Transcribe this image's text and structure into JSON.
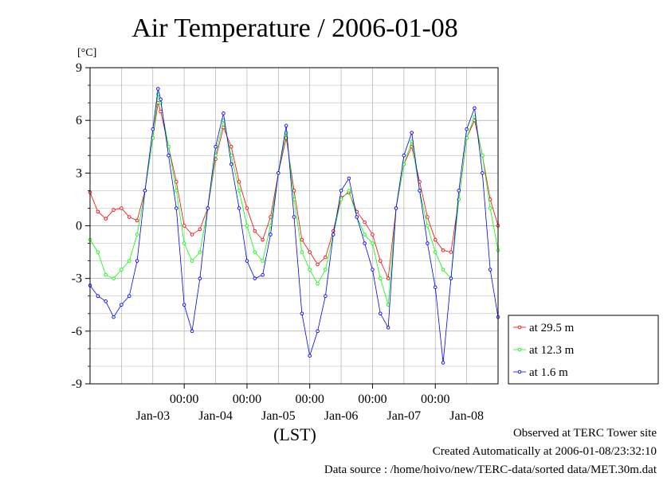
{
  "chart_data": {
    "type": "line",
    "title": "Air Temperature / 2006-01-08",
    "yunit": "[°C]",
    "xlabel": "(LST)",
    "ylim": [
      -9,
      9
    ],
    "yticks": [
      -9,
      -6,
      -3,
      0,
      3,
      6,
      9
    ],
    "grid": true,
    "legend_position": "bottom-right",
    "x_range_days": [
      "2006-01-02 12:00",
      "2006-01-08 24:00"
    ],
    "x_time_ticks": [
      {
        "time": "2006-01-04 00:00",
        "label": "00:00"
      },
      {
        "time": "2006-01-05 00:00",
        "label": "00:00"
      },
      {
        "time": "2006-01-06 00:00",
        "label": "00:00"
      },
      {
        "time": "2006-01-07 00:00",
        "label": "00:00"
      },
      {
        "time": "2006-01-08 00:00",
        "label": "00:00"
      }
    ],
    "x_date_labels": [
      {
        "time": "2006-01-03 12:00",
        "label": "Jan-03"
      },
      {
        "time": "2006-01-04 12:00",
        "label": "Jan-04"
      },
      {
        "time": "2006-01-05 12:00",
        "label": "Jan-05"
      },
      {
        "time": "2006-01-06 12:00",
        "label": "Jan-06"
      },
      {
        "time": "2006-01-07 12:00",
        "label": "Jan-07"
      },
      {
        "time": "2006-01-08 12:00",
        "label": "Jan-08"
      }
    ],
    "series": [
      {
        "name": "at 29.5 m",
        "color": "#ff0000",
        "points": [
          [
            "2006-01-02 12:00",
            1.9
          ],
          [
            "2006-01-02 15:00",
            0.8
          ],
          [
            "2006-01-02 18:00",
            0.4
          ],
          [
            "2006-01-02 21:00",
            0.9
          ],
          [
            "2006-01-03 00:00",
            1.0
          ],
          [
            "2006-01-03 03:00",
            0.5
          ],
          [
            "2006-01-03 06:00",
            0.3
          ],
          [
            "2006-01-03 09:00",
            2.0
          ],
          [
            "2006-01-03 12:00",
            5.0
          ],
          [
            "2006-01-03 14:00",
            7.0
          ],
          [
            "2006-01-03 15:00",
            6.5
          ],
          [
            "2006-01-03 18:00",
            4.5
          ],
          [
            "2006-01-03 21:00",
            2.5
          ],
          [
            "2006-01-04 00:00",
            0.0
          ],
          [
            "2006-01-04 03:00",
            -0.5
          ],
          [
            "2006-01-04 06:00",
            -0.2
          ],
          [
            "2006-01-04 09:00",
            1.0
          ],
          [
            "2006-01-04 12:00",
            3.8
          ],
          [
            "2006-01-04 15:00",
            5.6
          ],
          [
            "2006-01-04 18:00",
            4.5
          ],
          [
            "2006-01-04 21:00",
            2.5
          ],
          [
            "2006-01-05 00:00",
            1.0
          ],
          [
            "2006-01-05 03:00",
            -0.3
          ],
          [
            "2006-01-05 06:00",
            -0.8
          ],
          [
            "2006-01-05 09:00",
            0.5
          ],
          [
            "2006-01-05 12:00",
            3.0
          ],
          [
            "2006-01-05 15:00",
            5.0
          ],
          [
            "2006-01-05 18:00",
            2.0
          ],
          [
            "2006-01-05 21:00",
            -0.8
          ],
          [
            "2006-01-06 00:00",
            -1.5
          ],
          [
            "2006-01-06 03:00",
            -2.2
          ],
          [
            "2006-01-06 06:00",
            -1.8
          ],
          [
            "2006-01-06 09:00",
            -0.3
          ],
          [
            "2006-01-06 12:00",
            1.6
          ],
          [
            "2006-01-06 15:00",
            1.9
          ],
          [
            "2006-01-06 18:00",
            0.8
          ],
          [
            "2006-01-06 21:00",
            0.2
          ],
          [
            "2006-01-07 00:00",
            -0.5
          ],
          [
            "2006-01-07 03:00",
            -2.0
          ],
          [
            "2006-01-07 06:00",
            -3.0
          ],
          [
            "2006-01-07 09:00",
            1.0
          ],
          [
            "2006-01-07 12:00",
            3.5
          ],
          [
            "2006-01-07 15:00",
            4.5
          ],
          [
            "2006-01-07 18:00",
            2.5
          ],
          [
            "2006-01-07 21:00",
            0.5
          ],
          [
            "2006-01-08 00:00",
            -0.8
          ],
          [
            "2006-01-08 03:00",
            -1.4
          ],
          [
            "2006-01-08 06:00",
            -1.5
          ],
          [
            "2006-01-08 09:00",
            1.5
          ],
          [
            "2006-01-08 12:00",
            5.0
          ],
          [
            "2006-01-08 15:00",
            6.0
          ],
          [
            "2006-01-08 18:00",
            4.0
          ],
          [
            "2006-01-08 21:00",
            1.5
          ],
          [
            "2006-01-08 24:00",
            0.0
          ]
        ]
      },
      {
        "name": "at 12.3 m",
        "color": "#00ff00",
        "points": [
          [
            "2006-01-02 12:00",
            -0.8
          ],
          [
            "2006-01-02 15:00",
            -1.5
          ],
          [
            "2006-01-02 18:00",
            -2.8
          ],
          [
            "2006-01-02 21:00",
            -3.0
          ],
          [
            "2006-01-03 00:00",
            -2.5
          ],
          [
            "2006-01-03 03:00",
            -2.0
          ],
          [
            "2006-01-03 06:00",
            -0.5
          ],
          [
            "2006-01-03 09:00",
            2.0
          ],
          [
            "2006-01-03 12:00",
            5.0
          ],
          [
            "2006-01-03 14:00",
            7.5
          ],
          [
            "2006-01-03 15:00",
            7.0
          ],
          [
            "2006-01-03 18:00",
            4.5
          ],
          [
            "2006-01-03 21:00",
            2.0
          ],
          [
            "2006-01-04 00:00",
            -1.0
          ],
          [
            "2006-01-04 03:00",
            -2.0
          ],
          [
            "2006-01-04 06:00",
            -1.5
          ],
          [
            "2006-01-04 09:00",
            1.0
          ],
          [
            "2006-01-04 12:00",
            4.0
          ],
          [
            "2006-01-04 15:00",
            6.0
          ],
          [
            "2006-01-04 18:00",
            4.0
          ],
          [
            "2006-01-04 21:00",
            2.0
          ],
          [
            "2006-01-05 00:00",
            0.0
          ],
          [
            "2006-01-05 03:00",
            -1.5
          ],
          [
            "2006-01-05 06:00",
            -2.0
          ],
          [
            "2006-01-05 09:00",
            0.0
          ],
          [
            "2006-01-05 12:00",
            3.0
          ],
          [
            "2006-01-05 15:00",
            5.3
          ],
          [
            "2006-01-05 18:00",
            1.5
          ],
          [
            "2006-01-05 21:00",
            -1.5
          ],
          [
            "2006-01-06 00:00",
            -2.5
          ],
          [
            "2006-01-06 03:00",
            -3.3
          ],
          [
            "2006-01-06 06:00",
            -2.5
          ],
          [
            "2006-01-06 09:00",
            -0.5
          ],
          [
            "2006-01-06 12:00",
            1.5
          ],
          [
            "2006-01-06 15:00",
            2.0
          ],
          [
            "2006-01-06 18:00",
            0.5
          ],
          [
            "2006-01-06 21:00",
            -0.5
          ],
          [
            "2006-01-07 00:00",
            -1.0
          ],
          [
            "2006-01-07 03:00",
            -3.0
          ],
          [
            "2006-01-07 06:00",
            -4.5
          ],
          [
            "2006-01-07 09:00",
            1.0
          ],
          [
            "2006-01-07 12:00",
            3.5
          ],
          [
            "2006-01-07 15:00",
            4.8
          ],
          [
            "2006-01-07 18:00",
            2.0
          ],
          [
            "2006-01-07 21:00",
            0.0
          ],
          [
            "2006-01-08 00:00",
            -1.5
          ],
          [
            "2006-01-08 03:00",
            -2.5
          ],
          [
            "2006-01-08 06:00",
            -3.0
          ],
          [
            "2006-01-08 09:00",
            1.5
          ],
          [
            "2006-01-08 12:00",
            5.0
          ],
          [
            "2006-01-08 15:00",
            6.2
          ],
          [
            "2006-01-08 18:00",
            4.0
          ],
          [
            "2006-01-08 21:00",
            1.0
          ],
          [
            "2006-01-08 24:00",
            -1.4
          ]
        ]
      },
      {
        "name": "at 1.6 m",
        "color": "#0000ff",
        "points": [
          [
            "2006-01-02 12:00",
            -3.4
          ],
          [
            "2006-01-02 15:00",
            -4.0
          ],
          [
            "2006-01-02 18:00",
            -4.3
          ],
          [
            "2006-01-02 21:00",
            -5.2
          ],
          [
            "2006-01-03 00:00",
            -4.5
          ],
          [
            "2006-01-03 03:00",
            -4.0
          ],
          [
            "2006-01-03 06:00",
            -2.0
          ],
          [
            "2006-01-03 09:00",
            2.0
          ],
          [
            "2006-01-03 12:00",
            5.5
          ],
          [
            "2006-01-03 14:00",
            7.8
          ],
          [
            "2006-01-03 15:00",
            7.2
          ],
          [
            "2006-01-03 18:00",
            4.0
          ],
          [
            "2006-01-03 21:00",
            1.0
          ],
          [
            "2006-01-04 00:00",
            -4.5
          ],
          [
            "2006-01-04 03:00",
            -6.0
          ],
          [
            "2006-01-04 06:00",
            -3.0
          ],
          [
            "2006-01-04 09:00",
            1.0
          ],
          [
            "2006-01-04 12:00",
            4.5
          ],
          [
            "2006-01-04 15:00",
            6.4
          ],
          [
            "2006-01-04 18:00",
            3.5
          ],
          [
            "2006-01-04 21:00",
            1.0
          ],
          [
            "2006-01-05 00:00",
            -2.0
          ],
          [
            "2006-01-05 03:00",
            -3.0
          ],
          [
            "2006-01-05 06:00",
            -2.8
          ],
          [
            "2006-01-05 09:00",
            -0.5
          ],
          [
            "2006-01-05 12:00",
            3.0
          ],
          [
            "2006-01-05 15:00",
            5.7
          ],
          [
            "2006-01-05 18:00",
            0.5
          ],
          [
            "2006-01-05 21:00",
            -5.0
          ],
          [
            "2006-01-06 00:00",
            -7.4
          ],
          [
            "2006-01-06 03:00",
            -6.0
          ],
          [
            "2006-01-06 06:00",
            -4.0
          ],
          [
            "2006-01-06 09:00",
            -0.5
          ],
          [
            "2006-01-06 12:00",
            2.0
          ],
          [
            "2006-01-06 15:00",
            2.7
          ],
          [
            "2006-01-06 18:00",
            0.5
          ],
          [
            "2006-01-06 21:00",
            -1.0
          ],
          [
            "2006-01-07 00:00",
            -2.5
          ],
          [
            "2006-01-07 03:00",
            -5.0
          ],
          [
            "2006-01-07 06:00",
            -5.8
          ],
          [
            "2006-01-07 09:00",
            1.0
          ],
          [
            "2006-01-07 12:00",
            4.0
          ],
          [
            "2006-01-07 15:00",
            5.3
          ],
          [
            "2006-01-07 18:00",
            2.0
          ],
          [
            "2006-01-07 21:00",
            -1.0
          ],
          [
            "2006-01-08 00:00",
            -3.5
          ],
          [
            "2006-01-08 03:00",
            -7.8
          ],
          [
            "2006-01-08 06:00",
            -3.0
          ],
          [
            "2006-01-08 09:00",
            2.0
          ],
          [
            "2006-01-08 12:00",
            5.5
          ],
          [
            "2006-01-08 15:00",
            6.7
          ],
          [
            "2006-01-08 18:00",
            3.0
          ],
          [
            "2006-01-08 21:00",
            -2.5
          ],
          [
            "2006-01-08 24:00",
            -5.2
          ]
        ]
      }
    ]
  },
  "footer": {
    "observed": "Observed at TERC Tower site",
    "created": "Created Automatically at 2006-01-08/23:32:10",
    "source": "Data source : /home/hoivo/new/TERC-data/sorted  data/MET.30m.dat"
  }
}
